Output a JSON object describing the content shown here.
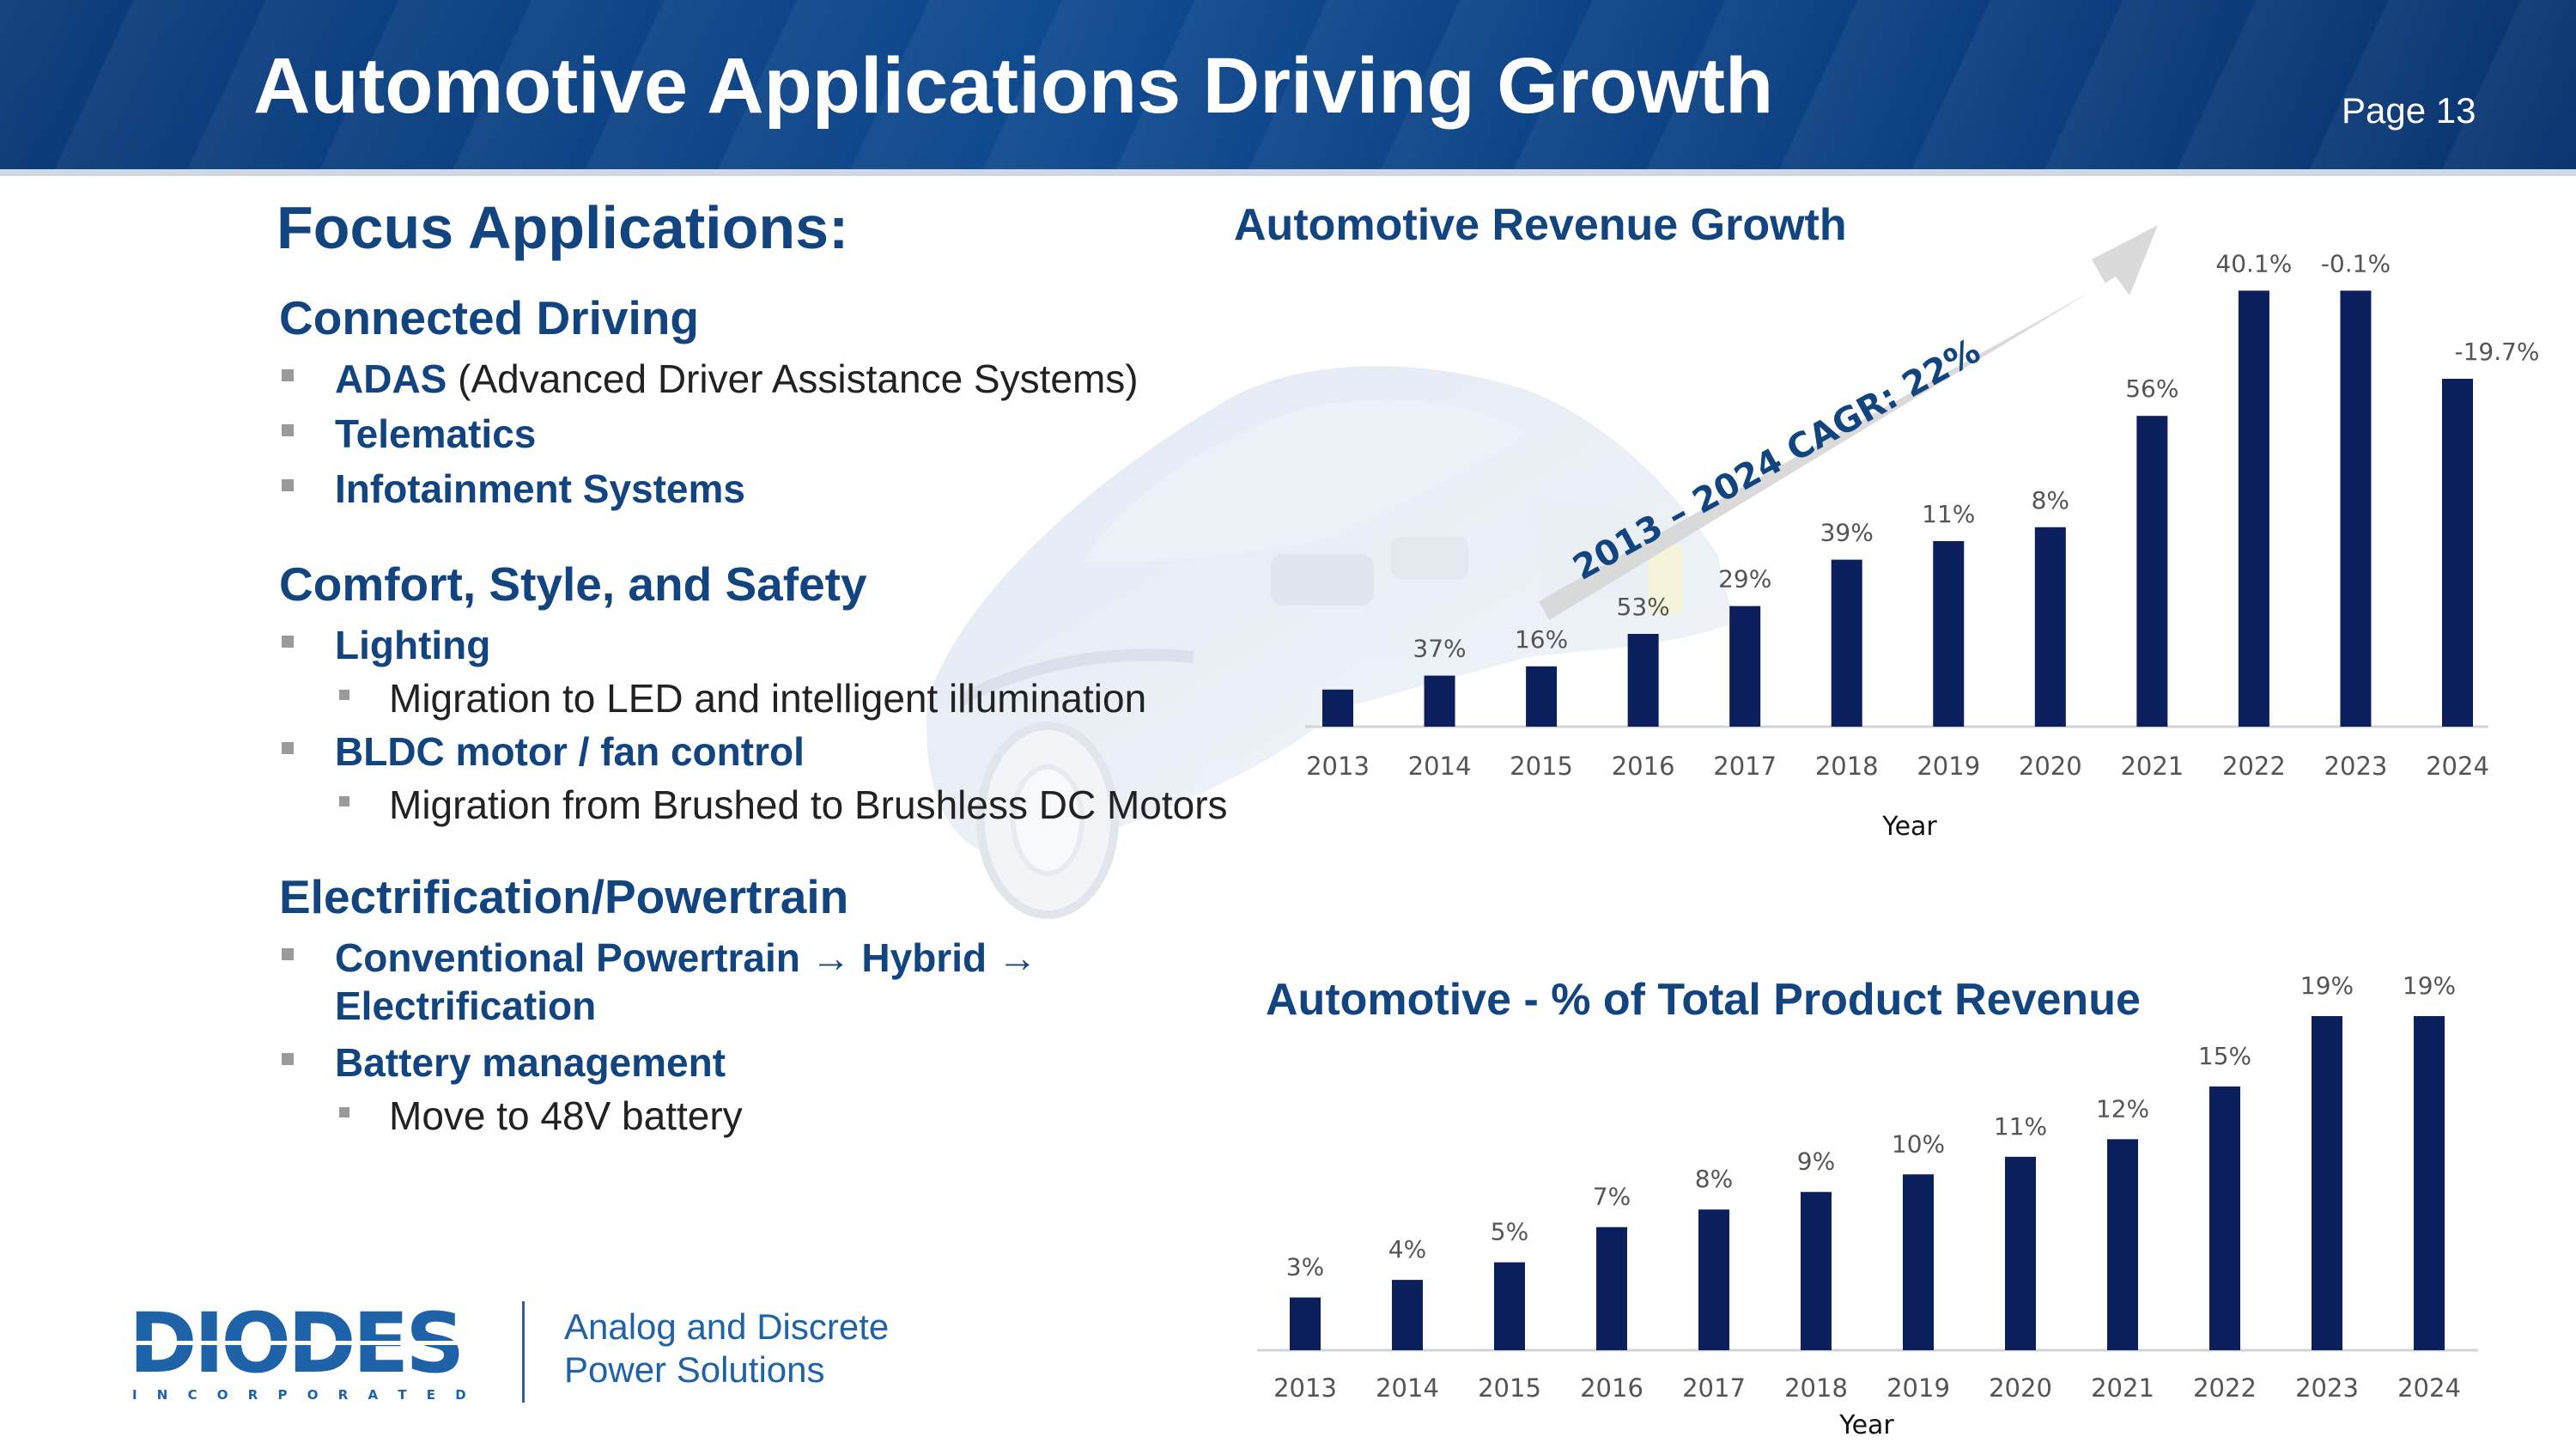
{
  "header": {
    "title": "Automotive Applications Driving Growth",
    "page": "Page 13"
  },
  "left": {
    "heading": "Focus Applications:",
    "sections": [
      {
        "title": "Connected Driving",
        "bullets": [
          {
            "bold": "ADAS",
            "rest": " (Advanced Driver Assistance Systems)"
          },
          {
            "bold": "Telematics",
            "rest": ""
          },
          {
            "bold": "Infotainment Systems",
            "rest": ""
          }
        ]
      },
      {
        "title": "Comfort, Style, and Safety",
        "bullets": [
          {
            "bold": "Lighting",
            "rest": ""
          },
          {
            "sub": "Migration to LED and intelligent illumination"
          },
          {
            "bold": "BLDC motor / fan control",
            "rest": ""
          },
          {
            "sub": "Migration from Brushed to Brushless DC Motors"
          }
        ]
      },
      {
        "title": "Electrification/Powertrain",
        "bullets": [
          {
            "bold": "Conventional Powertrain → Hybrid →",
            "rest": ""
          },
          {
            "bold": "Electrification",
            "rest": ""
          },
          {
            "bold": "Battery management",
            "rest": ""
          },
          {
            "sub": "Move to 48V battery"
          }
        ]
      }
    ]
  },
  "logo": {
    "name": "DIODES",
    "sub": "I N C O R P O R A T E D",
    "tagline_1": "Analog and Discrete",
    "tagline_2": "Power Solutions"
  },
  "colors": {
    "bar": "#0a1f5c",
    "accent": "#12457f",
    "header": "#0f4a8f"
  },
  "chart_data": [
    {
      "type": "bar",
      "title": "Automotive Revenue Growth",
      "xlabel": "Year",
      "ylabel": "",
      "categories": [
        "2013",
        "2014",
        "2015",
        "2016",
        "2017",
        "2018",
        "2019",
        "2020",
        "2021",
        "2022",
        "2023",
        "2024"
      ],
      "values": [
        8,
        11,
        13,
        20,
        26,
        36,
        40,
        43,
        67,
        94,
        94,
        75
      ],
      "labels": [
        "",
        "37%",
        "16%",
        "53%",
        "29%",
        "39%",
        "11%",
        "8%",
        "56%",
        "40.1%",
        "-0.1%",
        "-19.7%"
      ],
      "ylim": [
        0,
        100
      ],
      "annotation": "2013 – 2024 CAGR: 22%"
    },
    {
      "type": "bar",
      "title": "Automotive - % of Total Product Revenue",
      "xlabel": "Year",
      "ylabel": "",
      "categories": [
        "2013",
        "2014",
        "2015",
        "2016",
        "2017",
        "2018",
        "2019",
        "2020",
        "2021",
        "2022",
        "2023",
        "2024"
      ],
      "values": [
        3,
        4,
        5,
        7,
        8,
        9,
        10,
        11,
        12,
        15,
        19,
        19
      ],
      "labels": [
        "3%",
        "4%",
        "5%",
        "7%",
        "8%",
        "9%",
        "10%",
        "11%",
        "12%",
        "15%",
        "19%",
        "19%"
      ],
      "ylim": [
        0,
        19
      ]
    }
  ]
}
